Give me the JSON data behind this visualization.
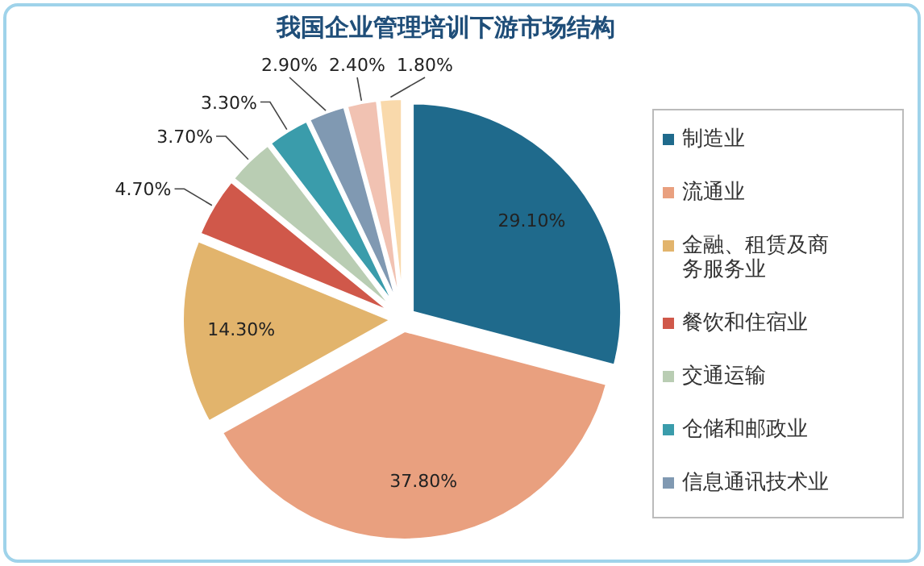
{
  "chart_data": {
    "type": "pie",
    "title": "我国企业管理培训下游市场结构",
    "categories": [
      "制造业",
      "流通业",
      "金融、租赁及商务服务业",
      "餐饮和住宿业",
      "交通运输",
      "仓储和邮政业",
      "信息通讯技术业",
      null,
      null
    ],
    "values": [
      29.1,
      37.8,
      14.3,
      4.7,
      3.7,
      3.3,
      2.9,
      2.4,
      1.8
    ],
    "value_labels": [
      "29.10%",
      "37.80%",
      "14.30%",
      "4.70%",
      "3.70%",
      "3.30%",
      "2.90%",
      "2.40%",
      "1.80%"
    ],
    "colors": [
      "#1f6a8c",
      "#e9a07f",
      "#e2b46c",
      "#d0584a",
      "#b9cdb3",
      "#3a9cab",
      "#8099b2",
      "#f1c2b2",
      "#f9d9ab"
    ],
    "legend": "right"
  }
}
